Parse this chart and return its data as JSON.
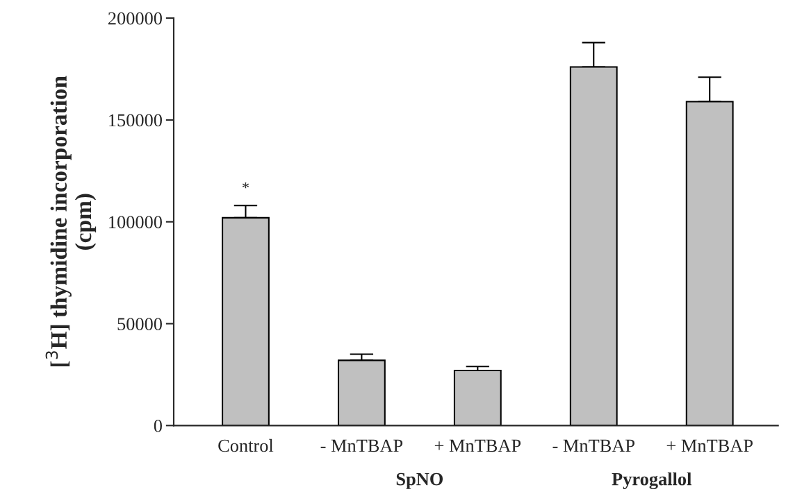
{
  "chart_data": {
    "type": "bar",
    "ylabel": "[$^{3}$H] thymidine incorporation\n(cpm)",
    "categories": [
      "Control",
      "- MnTBAP",
      "+ MnTBAP",
      "- MnTBAP",
      "+ MnTBAP"
    ],
    "values": [
      102000,
      32000,
      27000,
      176000,
      159000
    ],
    "errors": [
      [
        102000,
        108000
      ],
      [
        32000,
        35000
      ],
      [
        27000,
        29000
      ],
      [
        176000,
        188000
      ],
      [
        159000,
        171000
      ]
    ],
    "color": "#c0c0c0",
    "ylim": [
      0,
      200000
    ],
    "yticks": [
      0,
      50000,
      100000,
      150000,
      200000
    ],
    "grid": false,
    "annotations": [
      "*",
      "SpNO",
      "Pyrogallol"
    ]
  }
}
